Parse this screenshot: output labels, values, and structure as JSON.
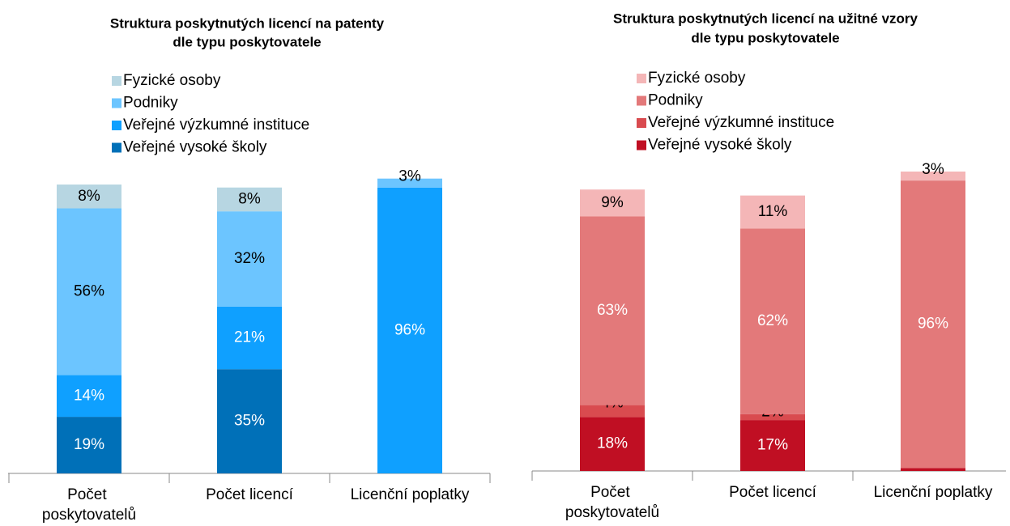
{
  "chart_data": [
    {
      "type": "bar",
      "stacked": true,
      "title": [
        "Struktura poskytnutých licencí na patenty",
        "dle typu poskytovatele"
      ],
      "categories": [
        "Počet poskytovatelů",
        "Počet licencí",
        "Licenční poplatky"
      ],
      "ylim": [
        0,
        100
      ],
      "series": [
        {
          "name": "Veřejné vysoké školy",
          "color": "#0070b8",
          "label_color": "#ffffff",
          "values": [
            19,
            35,
            null
          ],
          "value_labels": [
            "19%",
            "35%",
            null
          ]
        },
        {
          "name": "Veřejné výzkumné instituce",
          "color": "#0fa0ff",
          "label_color": "#ffffff",
          "values": [
            14,
            21,
            96
          ],
          "value_labels": [
            "14%",
            "21%",
            "96%"
          ]
        },
        {
          "name": "Podniky",
          "color": "#6cc5ff",
          "label_color": "#000000",
          "values": [
            56,
            32,
            3
          ],
          "value_labels": [
            "56%",
            "32%",
            "3%"
          ]
        },
        {
          "name": "Fyzické osoby",
          "color": "#b7d6e2",
          "label_color": "#000000",
          "values": [
            8,
            8,
            null
          ],
          "value_labels": [
            "8%",
            "8%",
            null
          ]
        }
      ]
    },
    {
      "type": "bar",
      "stacked": true,
      "title": [
        "Struktura poskytnutých licencí na užitné vzory",
        "dle typu poskytovatele"
      ],
      "categories": [
        "Počet poskytovatelů",
        "Počet licencí",
        "Licenční poplatky"
      ],
      "ylim": [
        0,
        100
      ],
      "series": [
        {
          "name": "Veřejné vysoké školy",
          "color": "#c00f23",
          "label_color": "#ffffff",
          "values": [
            18,
            17,
            1
          ],
          "value_labels": [
            "18%",
            "17%",
            null
          ]
        },
        {
          "name": "Veřejné výzkumné instituce",
          "color": "#d94b4f",
          "label_color": "#000000",
          "values": [
            4,
            2,
            null
          ],
          "value_labels": [
            "4%",
            "2%",
            null
          ]
        },
        {
          "name": "Podniky",
          "color": "#e3797a",
          "label_color": "#ffffff",
          "values": [
            63,
            62,
            96
          ],
          "value_labels": [
            "63%",
            "62%",
            "96%"
          ]
        },
        {
          "name": "Fyzické osoby",
          "color": "#f4b6b7",
          "label_color": "#000000",
          "values": [
            9,
            11,
            3
          ],
          "value_labels": [
            "9%",
            "11%",
            "3%"
          ]
        }
      ]
    }
  ]
}
